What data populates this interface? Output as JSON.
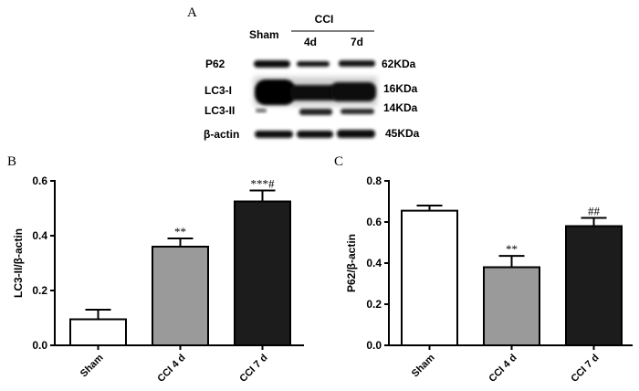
{
  "panel_a": {
    "label": "A",
    "lane_headers": {
      "sham": "Sham",
      "group": "CCI",
      "d4": "4d",
      "d7": "7d"
    },
    "rows": [
      {
        "name": "P62",
        "size": "62KDa"
      },
      {
        "name": "LC3-I",
        "size": "16KDa"
      },
      {
        "name": "LC3-II",
        "size": "14KDa"
      },
      {
        "name": "β-actin",
        "size": "45KDa"
      }
    ]
  },
  "chart_data": [
    {
      "panel": "B",
      "type": "bar",
      "title": "",
      "xlabel": "",
      "ylabel": "LC3-II/β-actin",
      "categories": [
        "Sham",
        "CCI 4 d",
        "CCI 7 d"
      ],
      "values": [
        0.095,
        0.36,
        0.525
      ],
      "errors": [
        0.035,
        0.03,
        0.04
      ],
      "annotations": [
        "",
        "**",
        "***#"
      ],
      "colors": [
        "#ffffff",
        "#9a9a9a",
        "#1c1c1c"
      ],
      "ylim": [
        0,
        0.6
      ],
      "yticks": [
        "0.0",
        "0.2",
        "0.4",
        "0.6"
      ],
      "grid": false
    },
    {
      "panel": "C",
      "type": "bar",
      "title": "",
      "xlabel": "",
      "ylabel": "P62/β-actin",
      "categories": [
        "Sham",
        "CCI 4 d",
        "CCI 7 d"
      ],
      "values": [
        0.655,
        0.38,
        0.58
      ],
      "errors": [
        0.025,
        0.055,
        0.04
      ],
      "annotations": [
        "",
        "**",
        "##"
      ],
      "colors": [
        "#ffffff",
        "#9a9a9a",
        "#1c1c1c"
      ],
      "ylim": [
        0,
        0.8
      ],
      "yticks": [
        "0.0",
        "0.2",
        "0.4",
        "0.6",
        "0.8"
      ],
      "grid": false
    }
  ]
}
